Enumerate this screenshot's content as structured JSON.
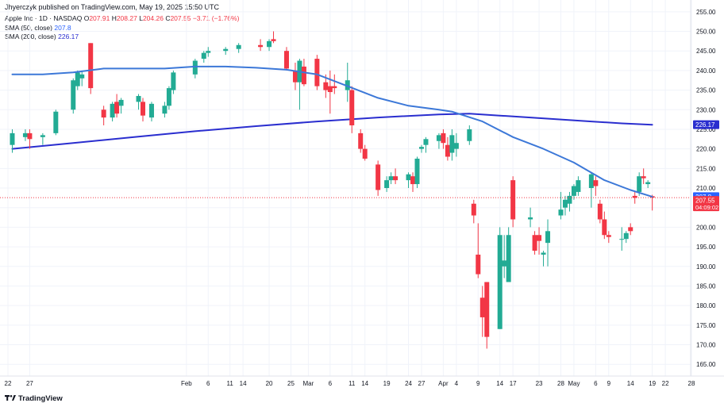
{
  "publisher_line": "Jhyerczyk published on TradingView.com, May 19, 2025 15:50 UTC",
  "legend": {
    "symbol": "Apple Inc · 1D · NASDAQ",
    "o_label": "O",
    "o": "207.91",
    "h_label": "H",
    "h": "208.27",
    "l_label": "L",
    "l": "204.26",
    "c_label": "C",
    "c": "207.55",
    "change": "−3.71 (−1.76%)",
    "sma50_label": "SMA (50, close)",
    "sma50_value": "207.8",
    "sma200_label": "SMA (200, close)",
    "sma200_value": "226.17"
  },
  "footer": {
    "brand": "TradingView",
    "logo": "tradingview-logo"
  },
  "colors": {
    "up": "#22ab94",
    "down": "#f23645",
    "sma50": "#3c78d8",
    "sma200": "#2a2ecf"
  },
  "chart_data": {
    "type": "candlestick",
    "ylim": [
      162,
      258
    ],
    "y_ticks": [
      "255.00",
      "250.00",
      "245.00",
      "240.00",
      "235.00",
      "230.00",
      "225.00",
      "220.00",
      "215.00",
      "210.00",
      "205.00",
      "200.00",
      "195.00",
      "190.00",
      "185.00",
      "180.00",
      "175.00",
      "170.00",
      "165.00"
    ],
    "x_labels": [
      {
        "label": "22",
        "d": "2024-12-22"
      },
      {
        "label": "27",
        "d": "2024-12-27"
      },
      {
        "label": "Feb",
        "d": "2025-02-01"
      },
      {
        "label": "6",
        "d": "2025-02-06"
      },
      {
        "label": "11",
        "d": "2025-02-11"
      },
      {
        "label": "14",
        "d": "2025-02-14"
      },
      {
        "label": "20",
        "d": "2025-02-20"
      },
      {
        "label": "25",
        "d": "2025-02-25"
      },
      {
        "label": "Mar",
        "d": "2025-03-01"
      },
      {
        "label": "6",
        "d": "2025-03-06"
      },
      {
        "label": "11",
        "d": "2025-03-11"
      },
      {
        "label": "14",
        "d": "2025-03-14"
      },
      {
        "label": "19",
        "d": "2025-03-19"
      },
      {
        "label": "24",
        "d": "2025-03-24"
      },
      {
        "label": "27",
        "d": "2025-03-27"
      },
      {
        "label": "Apr",
        "d": "2025-04-01"
      },
      {
        "label": "4",
        "d": "2025-04-04"
      },
      {
        "label": "9",
        "d": "2025-04-09"
      },
      {
        "label": "14",
        "d": "2025-04-14"
      },
      {
        "label": "17",
        "d": "2025-04-17"
      },
      {
        "label": "23",
        "d": "2025-04-23"
      },
      {
        "label": "28",
        "d": "2025-04-28"
      },
      {
        "label": "May",
        "d": "2025-05-01"
      },
      {
        "label": "6",
        "d": "2025-05-06"
      },
      {
        "label": "9",
        "d": "2025-05-09"
      },
      {
        "label": "14",
        "d": "2025-05-14"
      },
      {
        "label": "19",
        "d": "2025-05-19"
      },
      {
        "label": "22",
        "d": "2025-05-22"
      },
      {
        "label": "28",
        "d": "2025-05-28"
      }
    ],
    "price_labels": [
      {
        "value": 226.17,
        "text": "226.17",
        "color": "#2a2ecf"
      },
      {
        "value": 207.8,
        "text": "207.8",
        "color": "#2962ff"
      },
      {
        "value": 207.55,
        "text": "207.55",
        "sub": "04:09:02",
        "color": "#f23645"
      }
    ],
    "last_price_line": 207.55,
    "candles": [
      {
        "d": "2024-12-23",
        "o": 221,
        "h": 225,
        "l": 219,
        "c": 224
      },
      {
        "d": "2024-12-26",
        "o": 223,
        "h": 225,
        "l": 222,
        "c": 224
      },
      {
        "d": "2024-12-27",
        "o": 224,
        "h": 225,
        "l": 220,
        "c": 222.5
      },
      {
        "d": "2024-12-30",
        "o": 223,
        "h": 224,
        "l": 221,
        "c": 223.5
      },
      {
        "d": "2025-01-02",
        "o": 224,
        "h": 230,
        "l": 223.5,
        "c": 229.5
      },
      {
        "d": "2025-01-06",
        "o": 230,
        "h": 238,
        "l": 229,
        "c": 237.5
      },
      {
        "d": "2025-01-07",
        "o": 236,
        "h": 240,
        "l": 235,
        "c": 239.5
      },
      {
        "d": "2025-01-08",
        "o": 238,
        "h": 240,
        "l": 236,
        "c": 239
      },
      {
        "d": "2025-01-10",
        "o": 247,
        "h": 247,
        "l": 234,
        "c": 235.5
      },
      {
        "d": "2025-01-13",
        "o": 230,
        "h": 231,
        "l": 226,
        "c": 228
      },
      {
        "d": "2025-01-15",
        "o": 228,
        "h": 232,
        "l": 227,
        "c": 231.5
      },
      {
        "d": "2025-01-16",
        "o": 232,
        "h": 234,
        "l": 228,
        "c": 229
      },
      {
        "d": "2025-01-17",
        "o": 231,
        "h": 233,
        "l": 229,
        "c": 232.5
      },
      {
        "d": "2025-01-21",
        "o": 232,
        "h": 234,
        "l": 230,
        "c": 233.5
      },
      {
        "d": "2025-01-22",
        "o": 232,
        "h": 233,
        "l": 227,
        "c": 228.5
      },
      {
        "d": "2025-01-24",
        "o": 228,
        "h": 232,
        "l": 227,
        "c": 231.5
      },
      {
        "d": "2025-01-27",
        "o": 229,
        "h": 232,
        "l": 228,
        "c": 231
      },
      {
        "d": "2025-01-28",
        "o": 231,
        "h": 236,
        "l": 230,
        "c": 235.5
      },
      {
        "d": "2025-01-29",
        "o": 235,
        "h": 240,
        "l": 234,
        "c": 239.5
      },
      {
        "d": "2025-02-03",
        "o": 239,
        "h": 243,
        "l": 238,
        "c": 242.5
      },
      {
        "d": "2025-02-05",
        "o": 243,
        "h": 245,
        "l": 242,
        "c": 244.5
      },
      {
        "d": "2025-02-06",
        "o": 244.5,
        "h": 246,
        "l": 243.5,
        "c": 245
      },
      {
        "d": "2025-02-10",
        "o": 245,
        "h": 246,
        "l": 244,
        "c": 245.5
      },
      {
        "d": "2025-02-13",
        "o": 245.5,
        "h": 247,
        "l": 244.5,
        "c": 246.5
      },
      {
        "d": "2025-02-18",
        "o": 246.5,
        "h": 248,
        "l": 245,
        "c": 246
      },
      {
        "d": "2025-02-20",
        "o": 246,
        "h": 248,
        "l": 245,
        "c": 247.5
      },
      {
        "d": "2025-02-21",
        "o": 248,
        "h": 250,
        "l": 247,
        "c": 247.5
      },
      {
        "d": "2025-02-24",
        "o": 245,
        "h": 246,
        "l": 240,
        "c": 240.5
      },
      {
        "d": "2025-02-26",
        "o": 240,
        "h": 242,
        "l": 235,
        "c": 237
      },
      {
        "d": "2025-02-27",
        "o": 237,
        "h": 243,
        "l": 230,
        "c": 242.5
      },
      {
        "d": "2025-02-28",
        "o": 241,
        "h": 243,
        "l": 236,
        "c": 236.5
      },
      {
        "d": "2025-03-03",
        "o": 243,
        "h": 244,
        "l": 235,
        "c": 236
      },
      {
        "d": "2025-03-05",
        "o": 237,
        "h": 239,
        "l": 233,
        "c": 235
      },
      {
        "d": "2025-03-06",
        "o": 236,
        "h": 240,
        "l": 229,
        "c": 234.5
      },
      {
        "d": "2025-03-07",
        "o": 236,
        "h": 239,
        "l": 234,
        "c": 235.5
      },
      {
        "d": "2025-03-10",
        "o": 235,
        "h": 242,
        "l": 232,
        "c": 237.5
      },
      {
        "d": "2025-03-11",
        "o": 235,
        "h": 236,
        "l": 224,
        "c": 226
      },
      {
        "d": "2025-03-13",
        "o": 224,
        "h": 225,
        "l": 219,
        "c": 220
      },
      {
        "d": "2025-03-14",
        "o": 220,
        "h": 221,
        "l": 217,
        "c": 217.5
      },
      {
        "d": "2025-03-17",
        "o": 216,
        "h": 217,
        "l": 208,
        "c": 209.5
      },
      {
        "d": "2025-03-19",
        "o": 210,
        "h": 213,
        "l": 209,
        "c": 212
      },
      {
        "d": "2025-03-20",
        "o": 212,
        "h": 214,
        "l": 211,
        "c": 213
      },
      {
        "d": "2025-03-21",
        "o": 213,
        "h": 215,
        "l": 211,
        "c": 212
      },
      {
        "d": "2025-03-24",
        "o": 212,
        "h": 214,
        "l": 210,
        "c": 213.5
      },
      {
        "d": "2025-03-25",
        "o": 213,
        "h": 214,
        "l": 209,
        "c": 211
      },
      {
        "d": "2025-03-26",
        "o": 211,
        "h": 218,
        "l": 210,
        "c": 217.5
      },
      {
        "d": "2025-03-27",
        "o": 220,
        "h": 221,
        "l": 219,
        "c": 220.5
      },
      {
        "d": "2025-03-28",
        "o": 221,
        "h": 223,
        "l": 219,
        "c": 222.5
      },
      {
        "d": "2025-03-31",
        "o": 222,
        "h": 224,
        "l": 220,
        "c": 223.5
      },
      {
        "d": "2025-04-01",
        "o": 224,
        "h": 225,
        "l": 220,
        "c": 221.5
      },
      {
        "d": "2025-04-02",
        "o": 221,
        "h": 223,
        "l": 217,
        "c": 218
      },
      {
        "d": "2025-04-03",
        "o": 219,
        "h": 225,
        "l": 217,
        "c": 223.5
      },
      {
        "d": "2025-04-04",
        "o": 220,
        "h": 224,
        "l": 218,
        "c": 221.5
      },
      {
        "d": "2025-04-07",
        "o": 222,
        "h": 226,
        "l": 221,
        "c": 225
      },
      {
        "d": "2025-04-08",
        "o": 206,
        "h": 207,
        "l": 201,
        "c": 203
      },
      {
        "d": "2025-04-09",
        "o": 193,
        "h": 201,
        "l": 187,
        "c": 188
      },
      {
        "d": "2025-04-10",
        "o": 182,
        "h": 185,
        "l": 172,
        "c": 177
      },
      {
        "d": "2025-04-11",
        "o": 186,
        "h": 186,
        "l": 169,
        "c": 172
      },
      {
        "d": "2025-04-14",
        "o": 174,
        "h": 200,
        "l": 174,
        "c": 198
      },
      {
        "d": "2025-04-15",
        "o": 190,
        "h": 198,
        "l": 187,
        "c": 191.5
      },
      {
        "d": "2025-04-16",
        "o": 186,
        "h": 200,
        "l": 186,
        "c": 198
      },
      {
        "d": "2025-04-17",
        "o": 212,
        "h": 213,
        "l": 200,
        "c": 202
      },
      {
        "d": "2025-04-21",
        "o": 202,
        "h": 205,
        "l": 200,
        "c": 202.5
      },
      {
        "d": "2025-04-22",
        "o": 198,
        "h": 199,
        "l": 193,
        "c": 194
      },
      {
        "d": "2025-04-23",
        "o": 198,
        "h": 200,
        "l": 193,
        "c": 196.5
      },
      {
        "d": "2025-04-24",
        "o": 193,
        "h": 194,
        "l": 190,
        "c": 193.5
      },
      {
        "d": "2025-04-25",
        "o": 196,
        "h": 202,
        "l": 190,
        "c": 199
      },
      {
        "d": "2025-04-28",
        "o": 203,
        "h": 209,
        "l": 202,
        "c": 204.5
      },
      {
        "d": "2025-04-29",
        "o": 205,
        "h": 208,
        "l": 203,
        "c": 207
      },
      {
        "d": "2025-04-30",
        "o": 206,
        "h": 209,
        "l": 204,
        "c": 208
      },
      {
        "d": "2025-05-01",
        "o": 208,
        "h": 211,
        "l": 207,
        "c": 210.5
      },
      {
        "d": "2025-05-02",
        "o": 209,
        "h": 213,
        "l": 208,
        "c": 212
      },
      {
        "d": "2025-05-05",
        "o": 210,
        "h": 214,
        "l": 205,
        "c": 213.5
      },
      {
        "d": "2025-05-06",
        "o": 212,
        "h": 213,
        "l": 208,
        "c": 210.5
      },
      {
        "d": "2025-05-07",
        "o": 206,
        "h": 207,
        "l": 201,
        "c": 202
      },
      {
        "d": "2025-05-08",
        "o": 202,
        "h": 204,
        "l": 197,
        "c": 198
      },
      {
        "d": "2025-05-09",
        "o": 198,
        "h": 199,
        "l": 196,
        "c": 197.5
      },
      {
        "d": "2025-05-12",
        "o": 197,
        "h": 200,
        "l": 194,
        "c": 197
      },
      {
        "d": "2025-05-13",
        "o": 197,
        "h": 199,
        "l": 196,
        "c": 198.5
      },
      {
        "d": "2025-05-14",
        "o": 200,
        "h": 201,
        "l": 198,
        "c": 199
      },
      {
        "d": "2025-05-15",
        "o": 208,
        "h": 209,
        "l": 206,
        "c": 207.5
      },
      {
        "d": "2025-05-16",
        "o": 209,
        "h": 214,
        "l": 208,
        "c": 213
      },
      {
        "d": "2025-05-17",
        "o": 213,
        "h": 215,
        "l": 211,
        "c": 212.5
      },
      {
        "d": "2025-05-18",
        "o": 211,
        "h": 212,
        "l": 210,
        "c": 211.5
      },
      {
        "d": "2025-05-19",
        "o": 207.91,
        "h": 208.27,
        "l": 204.26,
        "c": 207.55
      }
    ],
    "sma50": [
      {
        "d": "2024-12-23",
        "v": 239
      },
      {
        "d": "2024-12-30",
        "v": 239
      },
      {
        "d": "2025-01-06",
        "v": 239.5
      },
      {
        "d": "2025-01-13",
        "v": 240.5
      },
      {
        "d": "2025-01-20",
        "v": 240.5
      },
      {
        "d": "2025-01-27",
        "v": 240.5
      },
      {
        "d": "2025-02-03",
        "v": 241
      },
      {
        "d": "2025-02-10",
        "v": 241
      },
      {
        "d": "2025-02-17",
        "v": 240.7
      },
      {
        "d": "2025-02-24",
        "v": 240.2
      },
      {
        "d": "2025-03-03",
        "v": 239
      },
      {
        "d": "2025-03-10",
        "v": 236
      },
      {
        "d": "2025-03-17",
        "v": 233
      },
      {
        "d": "2025-03-24",
        "v": 231
      },
      {
        "d": "2025-03-31",
        "v": 230
      },
      {
        "d": "2025-04-03",
        "v": 229.5
      },
      {
        "d": "2025-04-10",
        "v": 227
      },
      {
        "d": "2025-04-17",
        "v": 223
      },
      {
        "d": "2025-04-24",
        "v": 220
      },
      {
        "d": "2025-05-01",
        "v": 216.5
      },
      {
        "d": "2025-05-08",
        "v": 212
      },
      {
        "d": "2025-05-14",
        "v": 209.5
      },
      {
        "d": "2025-05-19",
        "v": 207.8
      }
    ],
    "sma200": [
      {
        "d": "2024-12-23",
        "v": 220
      },
      {
        "d": "2025-01-06",
        "v": 221.5
      },
      {
        "d": "2025-01-20",
        "v": 223
      },
      {
        "d": "2025-02-03",
        "v": 224.5
      },
      {
        "d": "2025-02-17",
        "v": 225.8
      },
      {
        "d": "2025-03-03",
        "v": 227
      },
      {
        "d": "2025-03-17",
        "v": 228
      },
      {
        "d": "2025-03-31",
        "v": 228.8
      },
      {
        "d": "2025-04-07",
        "v": 229
      },
      {
        "d": "2025-04-14",
        "v": 228.5
      },
      {
        "d": "2025-04-21",
        "v": 228
      },
      {
        "d": "2025-04-28",
        "v": 227.5
      },
      {
        "d": "2025-05-05",
        "v": 227
      },
      {
        "d": "2025-05-12",
        "v": 226.5
      },
      {
        "d": "2025-05-19",
        "v": 226.17
      }
    ]
  }
}
